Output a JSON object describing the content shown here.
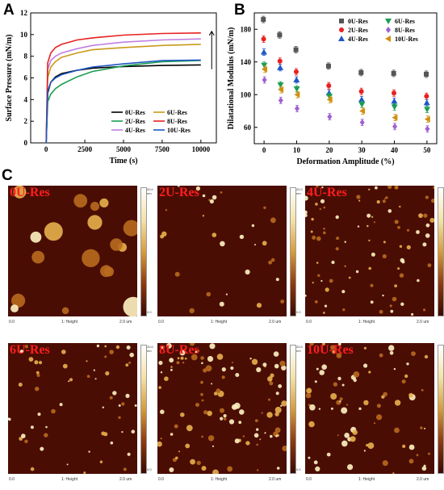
{
  "panels": {
    "a": "A",
    "b": "B",
    "c": "C"
  },
  "chart_data": [
    {
      "type": "line",
      "ylabel": "Surface Pressure (mN/m)",
      "xlabel": "Time (s)",
      "xlim": [
        -1000,
        11000
      ],
      "ylim": [
        0,
        12
      ],
      "xticks": [
        0,
        2500,
        5000,
        7500,
        10000
      ],
      "yticks": [
        0,
        2,
        4,
        6,
        8,
        10,
        12
      ],
      "legend_position": "bottom-right",
      "series": [
        {
          "name": "0U-Res",
          "color": "#000000",
          "x": [
            0,
            100,
            300,
            600,
            1000,
            2000,
            3000,
            5000,
            7500,
            10000
          ],
          "y": [
            0,
            4.6,
            5.6,
            6.1,
            6.4,
            6.7,
            6.9,
            7.05,
            7.15,
            7.2
          ]
        },
        {
          "name": "2U-Res",
          "color": "#1a9e50",
          "x": [
            0,
            100,
            300,
            600,
            1000,
            2000,
            3000,
            5000,
            7500,
            10000
          ],
          "y": [
            0,
            3.8,
            4.5,
            5.0,
            5.4,
            6.1,
            6.6,
            7.1,
            7.5,
            7.6
          ]
        },
        {
          "name": "4U-Res",
          "color": "#c07fe0",
          "x": [
            0,
            100,
            300,
            600,
            1000,
            2000,
            3000,
            5000,
            7500,
            10000
          ],
          "y": [
            0,
            6.8,
            7.6,
            8.0,
            8.3,
            8.7,
            9.0,
            9.3,
            9.5,
            9.6
          ]
        },
        {
          "name": "6U-Res",
          "color": "#c99a1a",
          "x": [
            0,
            100,
            300,
            600,
            1000,
            2000,
            3000,
            5000,
            7500,
            10000
          ],
          "y": [
            0,
            6.0,
            7.0,
            7.5,
            7.9,
            8.3,
            8.6,
            8.8,
            9.0,
            9.1
          ]
        },
        {
          "name": "8U-Res",
          "color": "#e82020",
          "x": [
            0,
            100,
            300,
            600,
            1000,
            2000,
            3000,
            5000,
            7500,
            10000
          ],
          "y": [
            0,
            7.4,
            8.3,
            8.8,
            9.1,
            9.5,
            9.7,
            9.95,
            10.1,
            10.15
          ]
        },
        {
          "name": "10U-Res",
          "color": "#1f56c4",
          "x": [
            0,
            100,
            300,
            600,
            1000,
            2000,
            3000,
            5000,
            7500,
            10000
          ],
          "y": [
            0,
            4.8,
            5.6,
            6.0,
            6.3,
            6.7,
            7.0,
            7.3,
            7.6,
            7.65
          ]
        }
      ]
    },
    {
      "type": "scatter",
      "ylabel": "Dilatational Modulus (mN/m)",
      "xlabel": "Deformation Amplitude (%)",
      "xlim": [
        -3,
        53
      ],
      "ylim": [
        40,
        200
      ],
      "xticks": [
        0,
        10,
        20,
        30,
        40,
        50
      ],
      "yticks": [
        60,
        100,
        140,
        180
      ],
      "legend_position": "top-right",
      "x": [
        0,
        5,
        10,
        20,
        30,
        40,
        50
      ],
      "series": [
        {
          "name": "0U-Res",
          "marker": "square",
          "color": "#555555",
          "values": [
            192,
            173,
            155,
            135,
            127,
            126,
            125
          ]
        },
        {
          "name": "2U-Res",
          "marker": "circle",
          "color": "#e82020",
          "values": [
            168,
            141,
            128,
            111,
            104,
            102,
            98
          ]
        },
        {
          "name": "4U-Res",
          "marker": "triangle-up",
          "color": "#1f56c4",
          "values": [
            152,
            133,
            118,
            102,
            94,
            92,
            90
          ]
        },
        {
          "name": "6U-Res",
          "marker": "triangle-down",
          "color": "#1a9e50",
          "values": [
            136,
            112,
            107,
            98,
            88,
            85,
            82
          ]
        },
        {
          "name": "8U-Res",
          "marker": "diamond",
          "color": "#a060d0",
          "values": [
            118,
            93,
            83,
            73,
            66,
            61,
            58
          ]
        },
        {
          "name": "10U-Res",
          "marker": "triangle-left",
          "color": "#d09010",
          "values": [
            131,
            106,
            100,
            94,
            80,
            72,
            70
          ]
        }
      ]
    }
  ],
  "afm": {
    "x_start": "0.0",
    "x_mid": "1: Height",
    "x_end": "2.0 um",
    "cbar_top": "20.0 nm",
    "cbar_bottom": "0.0",
    "images": [
      {
        "label": "0U-Res"
      },
      {
        "label": "2U-Res"
      },
      {
        "label": "4U-Res"
      },
      {
        "label": "6U-Res"
      },
      {
        "label": "8U-Res"
      },
      {
        "label": "10U-Res"
      }
    ]
  }
}
